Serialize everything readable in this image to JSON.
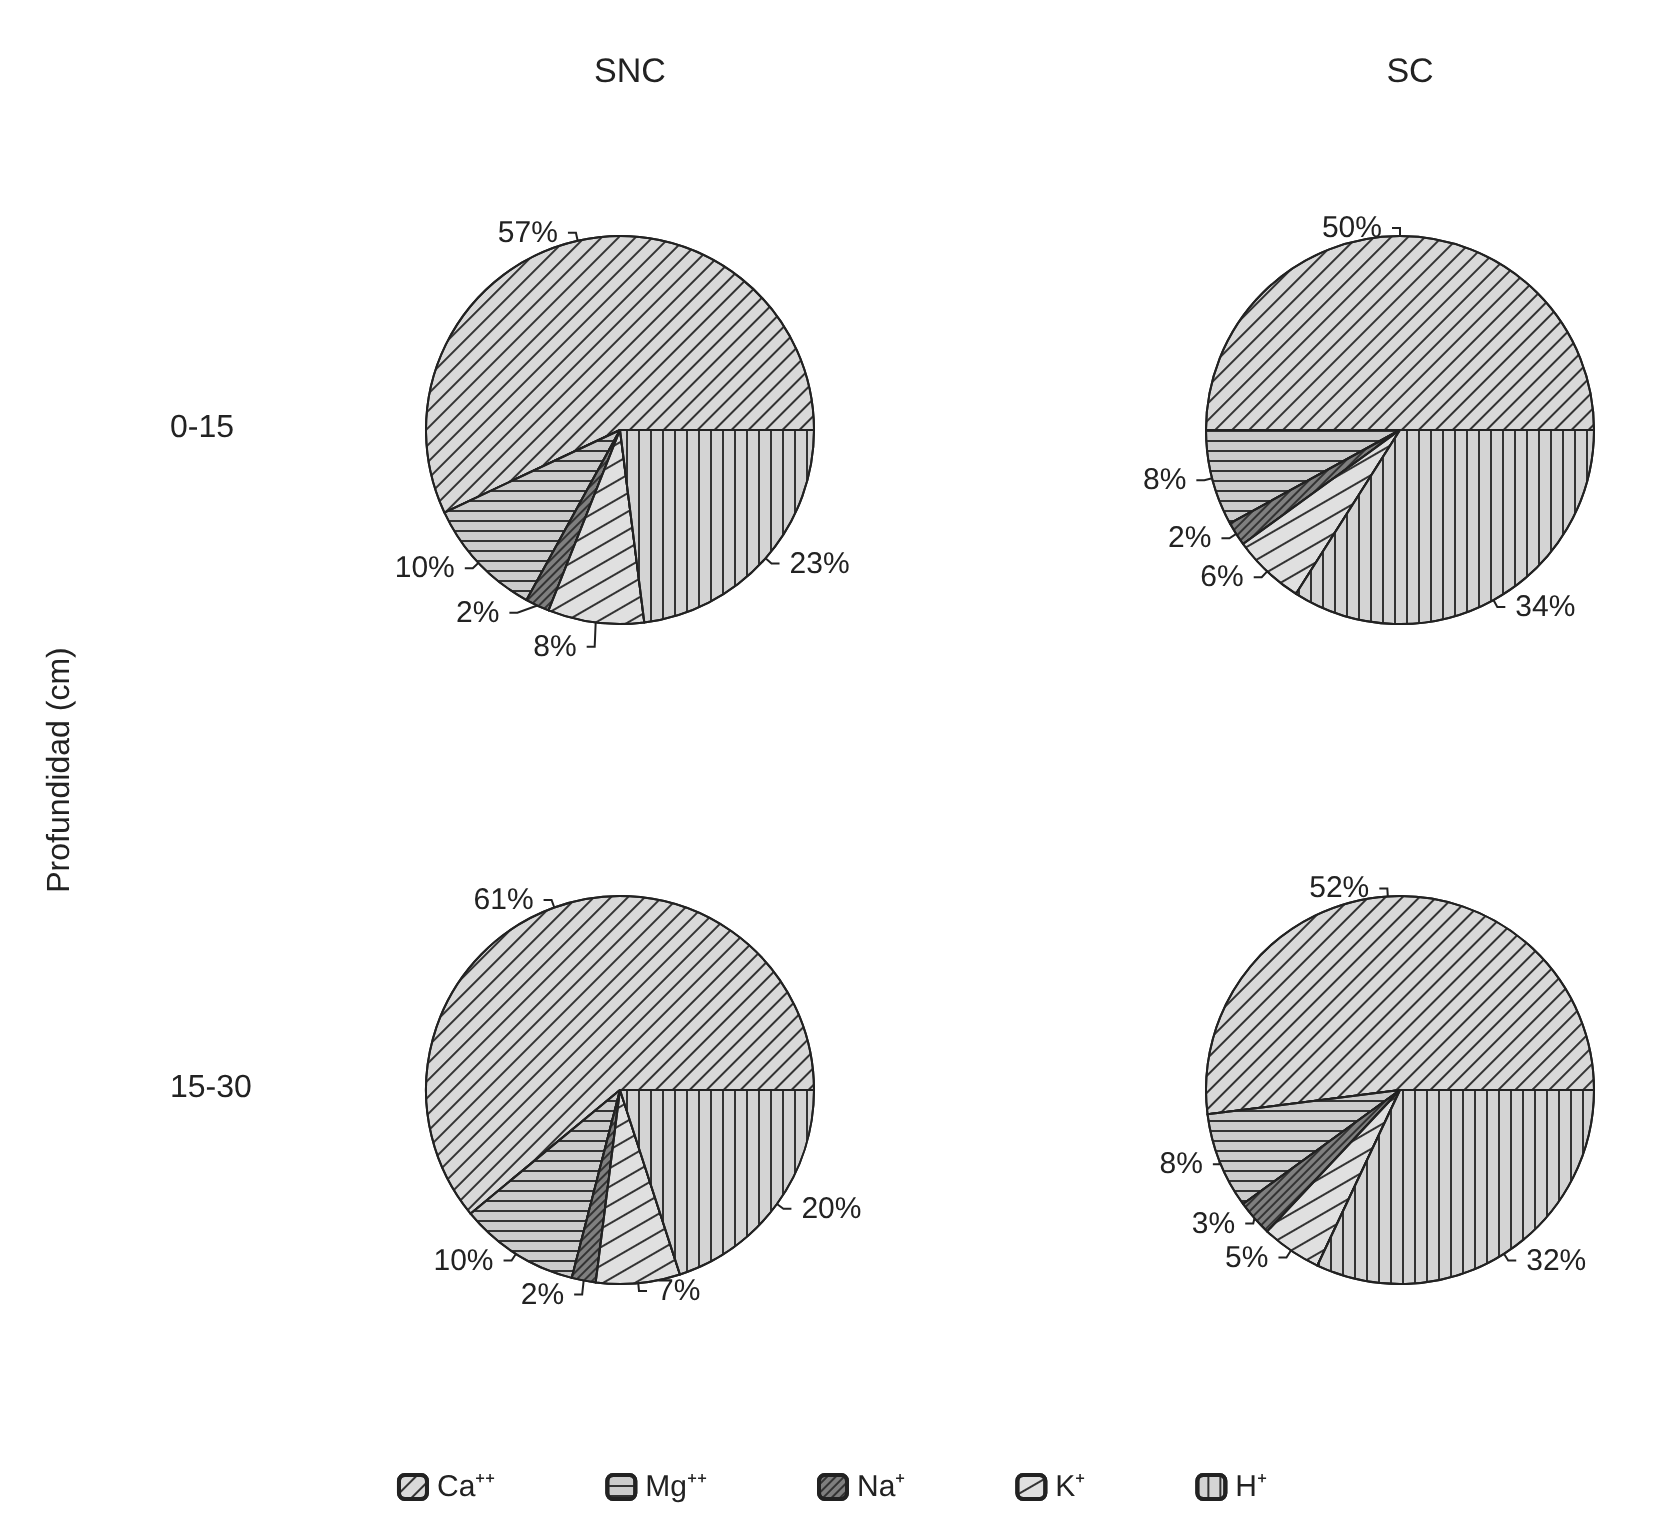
{
  "chart_data": [
    {
      "type": "pie",
      "title": "SNC",
      "ylabel": "0-15",
      "annotations": [
        "Profundidad (cm)"
      ],
      "categories": [
        null,
        null,
        null,
        null,
        null
      ],
      "values": [
        57,
        10,
        2,
        8,
        23
      ],
      "colors": [
        "#d9d9d9",
        "#cccccc",
        "#7f7f7f",
        "#e0e0e0",
        "#d4d4d4"
      ],
      "value_labels": [
        "57%",
        "10%",
        "2%",
        "8%",
        "23%"
      ]
    },
    {
      "type": "pie",
      "title": "SC",
      "categories": [
        null,
        null,
        null,
        null,
        null
      ],
      "values": [
        50,
        8,
        2,
        6,
        34
      ],
      "colors": [
        "#d9d9d9",
        "#cccccc",
        "#7f7f7f",
        "#e0e0e0",
        "#d4d4d4"
      ],
      "value_labels": [
        "50%",
        "8%",
        "2%",
        "6%",
        "34%"
      ]
    },
    {
      "type": "pie",
      "ylabel": "15-30",
      "categories": [
        null,
        null,
        null,
        null,
        null
      ],
      "values": [
        61,
        10,
        2,
        7,
        20
      ],
      "colors": [
        "#d9d9d9",
        "#cccccc",
        "#7f7f7f",
        "#e0e0e0",
        "#d4d4d4"
      ],
      "value_labels": [
        "61%",
        "10%",
        "2%",
        "7%",
        "20%"
      ]
    },
    {
      "type": "pie",
      "categories": [
        "Ca⁺⁺",
        "Mg⁺⁺",
        "Na⁺",
        "K⁺",
        "H⁺"
      ],
      "values": [
        52,
        8,
        3,
        5,
        32
      ],
      "colors": [
        "#d9d9d9",
        "#cccccc",
        "#7f7f7f",
        "#e0e0e0",
        "#d4d4d4"
      ],
      "value_labels": [
        "52%",
        "8%",
        "3%",
        "5%",
        "32%"
      ],
      "legend": "bottom"
    }
  ]
}
